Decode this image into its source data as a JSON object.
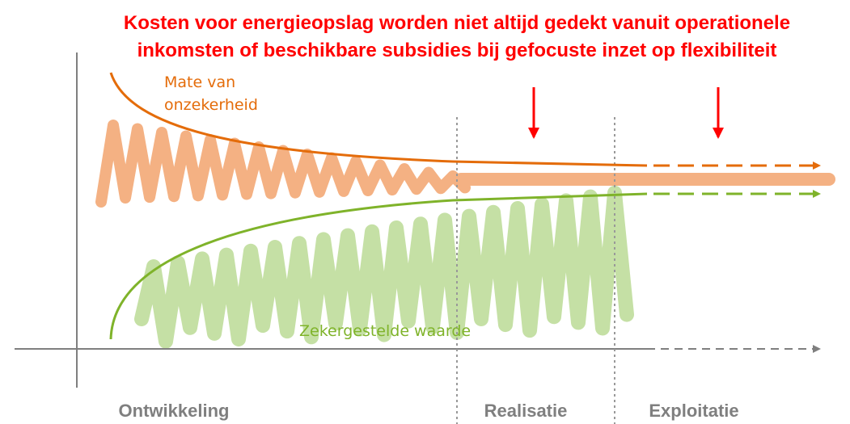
{
  "title": {
    "lines": [
      "Kosten voor energieopslag worden niet altijd gedekt vanuit operationele",
      "inkomsten of beschikbare subsidies bij gefocuste inzet op flexibiliteit"
    ]
  },
  "curves": {
    "uncertainty": {
      "label_lines": [
        "Mate van",
        "onzekerheid"
      ]
    },
    "secured_value": {
      "label": "Zekergestelde waarde"
    }
  },
  "phases": [
    "Ontwikkeling",
    "Realisatie",
    "Exploitatie"
  ]
}
